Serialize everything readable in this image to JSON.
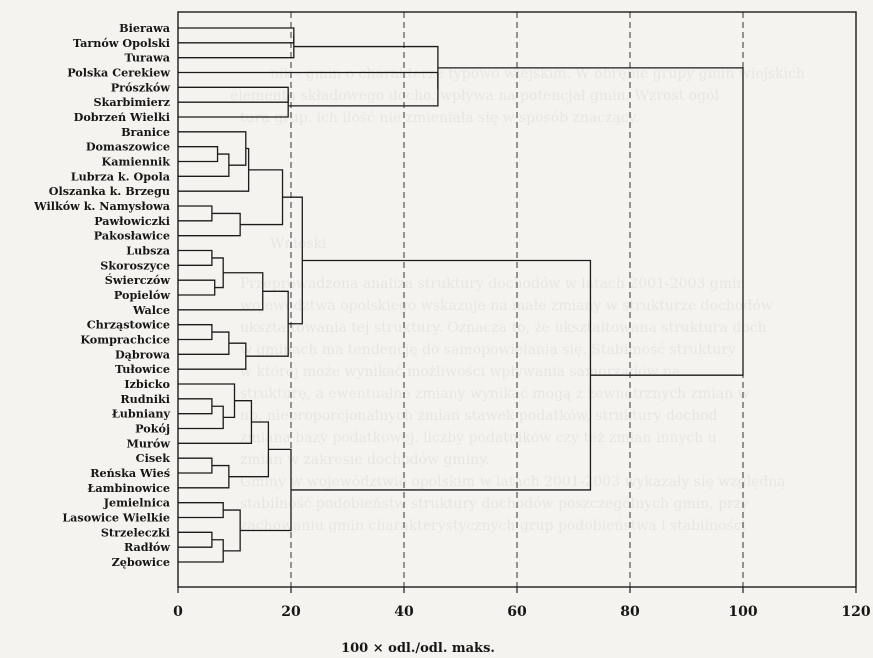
{
  "chart_data": {
    "type": "dendrogram",
    "orientation": "horizontal",
    "xlabel": "100 × odl./odl. maks.",
    "xlim": [
      0,
      120
    ],
    "xticks": [
      0,
      20,
      40,
      60,
      80,
      100,
      120
    ],
    "grid": "vertical dashed lines at 20, 40, 60, 80, 100",
    "leaves": [
      "Bierawa",
      "Tarnów Opolski",
      "Turawa",
      "Polska Cerekiew",
      "Prószków",
      "Skarbimierz",
      "Dobrzeń Wielki",
      "Branice",
      "Domaszowice",
      "Kamiennik",
      "Lubrza k. Opola",
      "Olszanka k. Brzegu",
      "Wilków k. Namysłowa",
      "Pawłowiczki",
      "Pakosławice",
      "Lubsza",
      "Skoroszyce",
      "Świerczów",
      "Popielów",
      "Walce",
      "Chrząstowice",
      "Komprachcice",
      "Dąbrowa",
      "Tułowice",
      "Izbicko",
      "Rudniki",
      "Łubniany",
      "Pokój",
      "Murów",
      "Cisek",
      "Reńska Wieś",
      "Łambinowice",
      "Jemielnica",
      "Lasowice Wielkie",
      "Strzeleczki",
      "Radłów",
      "Zębowice"
    ],
    "merges": [
      {
        "a": "L0",
        "b": "L1",
        "height": 20.5
      },
      {
        "a": "N0",
        "b": "L2",
        "height": 20.5
      },
      {
        "a": "L4",
        "b": "L5",
        "height": 19.5
      },
      {
        "a": "N2",
        "b": "L6",
        "height": 19.5
      },
      {
        "a": "L3",
        "b": "N3",
        "height": 46
      },
      {
        "a": "N1",
        "b": "N4",
        "height": 46
      },
      {
        "a": "L8",
        "b": "L9",
        "height": 7
      },
      {
        "a": "N6",
        "b": "L10",
        "height": 9
      },
      {
        "a": "L7",
        "b": "N7",
        "height": 12
      },
      {
        "a": "N8",
        "b": "L11",
        "height": 12.5
      },
      {
        "a": "L12",
        "b": "L13",
        "height": 6
      },
      {
        "a": "N10",
        "b": "L14",
        "height": 11
      },
      {
        "a": "N9",
        "b": "N11",
        "height": 18.5
      },
      {
        "a": "L15",
        "b": "L16",
        "height": 6
      },
      {
        "a": "L17",
        "b": "L18",
        "height": 6.5
      },
      {
        "a": "N13",
        "b": "N14",
        "height": 8
      },
      {
        "a": "N15",
        "b": "L19",
        "height": 15
      },
      {
        "a": "L20",
        "b": "L21",
        "height": 6
      },
      {
        "a": "N17",
        "b": "L22",
        "height": 9
      },
      {
        "a": "N18",
        "b": "L23",
        "height": 12
      },
      {
        "a": "N16",
        "b": "N19",
        "height": 19.5
      },
      {
        "a": "N12",
        "b": "N20",
        "height": 22
      },
      {
        "a": "L25",
        "b": "L26",
        "height": 6
      },
      {
        "a": "N22",
        "b": "L27",
        "height": 8
      },
      {
        "a": "L24",
        "b": "N23",
        "height": 10
      },
      {
        "a": "N24",
        "b": "L28",
        "height": 13
      },
      {
        "a": "L29",
        "b": "L30",
        "height": 6
      },
      {
        "a": "N26",
        "b": "L31",
        "height": 9
      },
      {
        "a": "N25",
        "b": "N27",
        "height": 16
      },
      {
        "a": "L32",
        "b": "L33",
        "height": 8
      },
      {
        "a": "L34",
        "b": "L35",
        "height": 6
      },
      {
        "a": "N30",
        "b": "L36",
        "height": 8
      },
      {
        "a": "N29",
        "b": "N31",
        "height": 11
      },
      {
        "a": "N28",
        "b": "N32",
        "height": 20
      },
      {
        "a": "N21",
        "b": "N33",
        "height": 73
      },
      {
        "a": "N5",
        "b": "N34",
        "height": 100
      }
    ]
  }
}
